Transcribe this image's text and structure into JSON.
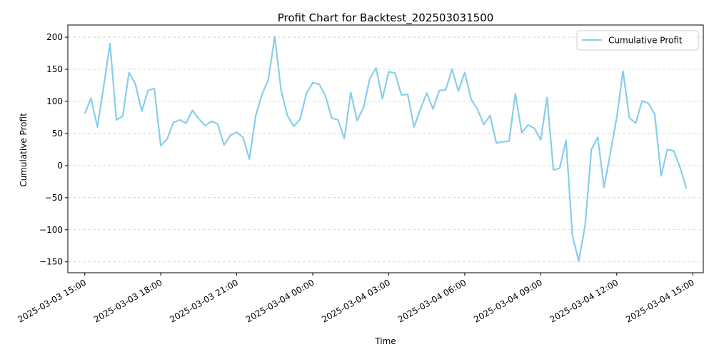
{
  "chart_data": {
    "type": "line",
    "title": "Profit Chart for Backtest_202503031500",
    "xlabel": "Time",
    "ylabel": "Cumulative Profit",
    "x_ticks": [
      "2025-03-03 15:00",
      "2025-03-03 18:00",
      "2025-03-03 21:00",
      "2025-03-04 00:00",
      "2025-03-04 03:00",
      "2025-03-04 06:00",
      "2025-03-04 09:00",
      "2025-03-04 12:00",
      "2025-03-04 15:00"
    ],
    "y_ticks": [
      200,
      150,
      100,
      50,
      0,
      -50,
      -100,
      -150
    ],
    "ylim": [
      -167,
      219
    ],
    "xlim": [
      "2025-03-03 14:20",
      "2025-03-04 15:25"
    ],
    "grid": "y-dashed",
    "legend_position": "top-right",
    "colors": {
      "line": "#87ceeb",
      "grid": "#cccccc",
      "axis": "#000000"
    },
    "series": [
      {
        "name": "Cumulative Profit",
        "x": [
          "2025-03-03 15:00",
          "2025-03-03 15:15",
          "2025-03-03 15:30",
          "2025-03-03 15:45",
          "2025-03-03 16:00",
          "2025-03-03 16:15",
          "2025-03-03 16:30",
          "2025-03-03 16:45",
          "2025-03-03 17:00",
          "2025-03-03 17:15",
          "2025-03-03 17:30",
          "2025-03-03 17:45",
          "2025-03-03 18:00",
          "2025-03-03 18:15",
          "2025-03-03 18:30",
          "2025-03-03 18:45",
          "2025-03-03 19:00",
          "2025-03-03 19:15",
          "2025-03-03 19:30",
          "2025-03-03 19:45",
          "2025-03-03 20:00",
          "2025-03-03 20:15",
          "2025-03-03 20:30",
          "2025-03-03 20:45",
          "2025-03-03 21:00",
          "2025-03-03 21:15",
          "2025-03-03 21:30",
          "2025-03-03 21:45",
          "2025-03-03 22:00",
          "2025-03-03 22:15",
          "2025-03-03 22:30",
          "2025-03-03 22:45",
          "2025-03-03 23:00",
          "2025-03-03 23:15",
          "2025-03-03 23:30",
          "2025-03-03 23:45",
          "2025-03-04 00:00",
          "2025-03-04 00:15",
          "2025-03-04 00:30",
          "2025-03-04 00:45",
          "2025-03-04 01:00",
          "2025-03-04 01:15",
          "2025-03-04 01:30",
          "2025-03-04 01:45",
          "2025-03-04 02:00",
          "2025-03-04 02:15",
          "2025-03-04 02:30",
          "2025-03-04 02:45",
          "2025-03-04 03:00",
          "2025-03-04 03:15",
          "2025-03-04 03:30",
          "2025-03-04 03:45",
          "2025-03-04 04:00",
          "2025-03-04 04:15",
          "2025-03-04 04:30",
          "2025-03-04 04:45",
          "2025-03-04 05:00",
          "2025-03-04 05:15",
          "2025-03-04 05:30",
          "2025-03-04 05:45",
          "2025-03-04 06:00",
          "2025-03-04 06:15",
          "2025-03-04 06:30",
          "2025-03-04 06:45",
          "2025-03-04 07:00",
          "2025-03-04 07:15",
          "2025-03-04 07:30",
          "2025-03-04 07:45",
          "2025-03-04 08:00",
          "2025-03-04 08:15",
          "2025-03-04 08:30",
          "2025-03-04 08:45",
          "2025-03-04 09:00",
          "2025-03-04 09:15",
          "2025-03-04 09:30",
          "2025-03-04 09:45",
          "2025-03-04 10:00",
          "2025-03-04 10:15",
          "2025-03-04 10:30",
          "2025-03-04 10:45",
          "2025-03-04 11:00",
          "2025-03-04 11:15",
          "2025-03-04 11:30",
          "2025-03-04 11:45",
          "2025-03-04 12:00",
          "2025-03-04 12:15",
          "2025-03-04 12:30",
          "2025-03-04 12:45",
          "2025-03-04 13:00",
          "2025-03-04 13:15",
          "2025-03-04 13:30",
          "2025-03-04 13:45",
          "2025-03-04 14:00",
          "2025-03-04 14:15",
          "2025-03-04 14:30",
          "2025-03-04 14:45"
        ],
        "values": [
          81,
          105,
          60,
          124,
          190,
          71,
          77,
          145,
          127,
          85,
          117,
          120,
          31,
          41,
          67,
          71,
          66,
          86,
          73,
          62,
          69,
          65,
          32,
          47,
          52,
          44,
          10,
          78,
          111,
          134,
          201,
          118,
          78,
          61,
          72,
          112,
          129,
          127,
          109,
          74,
          71,
          42,
          114,
          70,
          90,
          135,
          152,
          104,
          146,
          144,
          110,
          111,
          60,
          88,
          113,
          88,
          117,
          118,
          150,
          116,
          145,
          103,
          88,
          64,
          78,
          35,
          37,
          38,
          112,
          51,
          63,
          58,
          40,
          106,
          -7,
          -4,
          39,
          -109,
          -149,
          -94,
          25,
          44,
          -34,
          20,
          75,
          147,
          74,
          66,
          101,
          97,
          80,
          -16,
          25,
          23,
          -3,
          -36
        ]
      }
    ]
  }
}
